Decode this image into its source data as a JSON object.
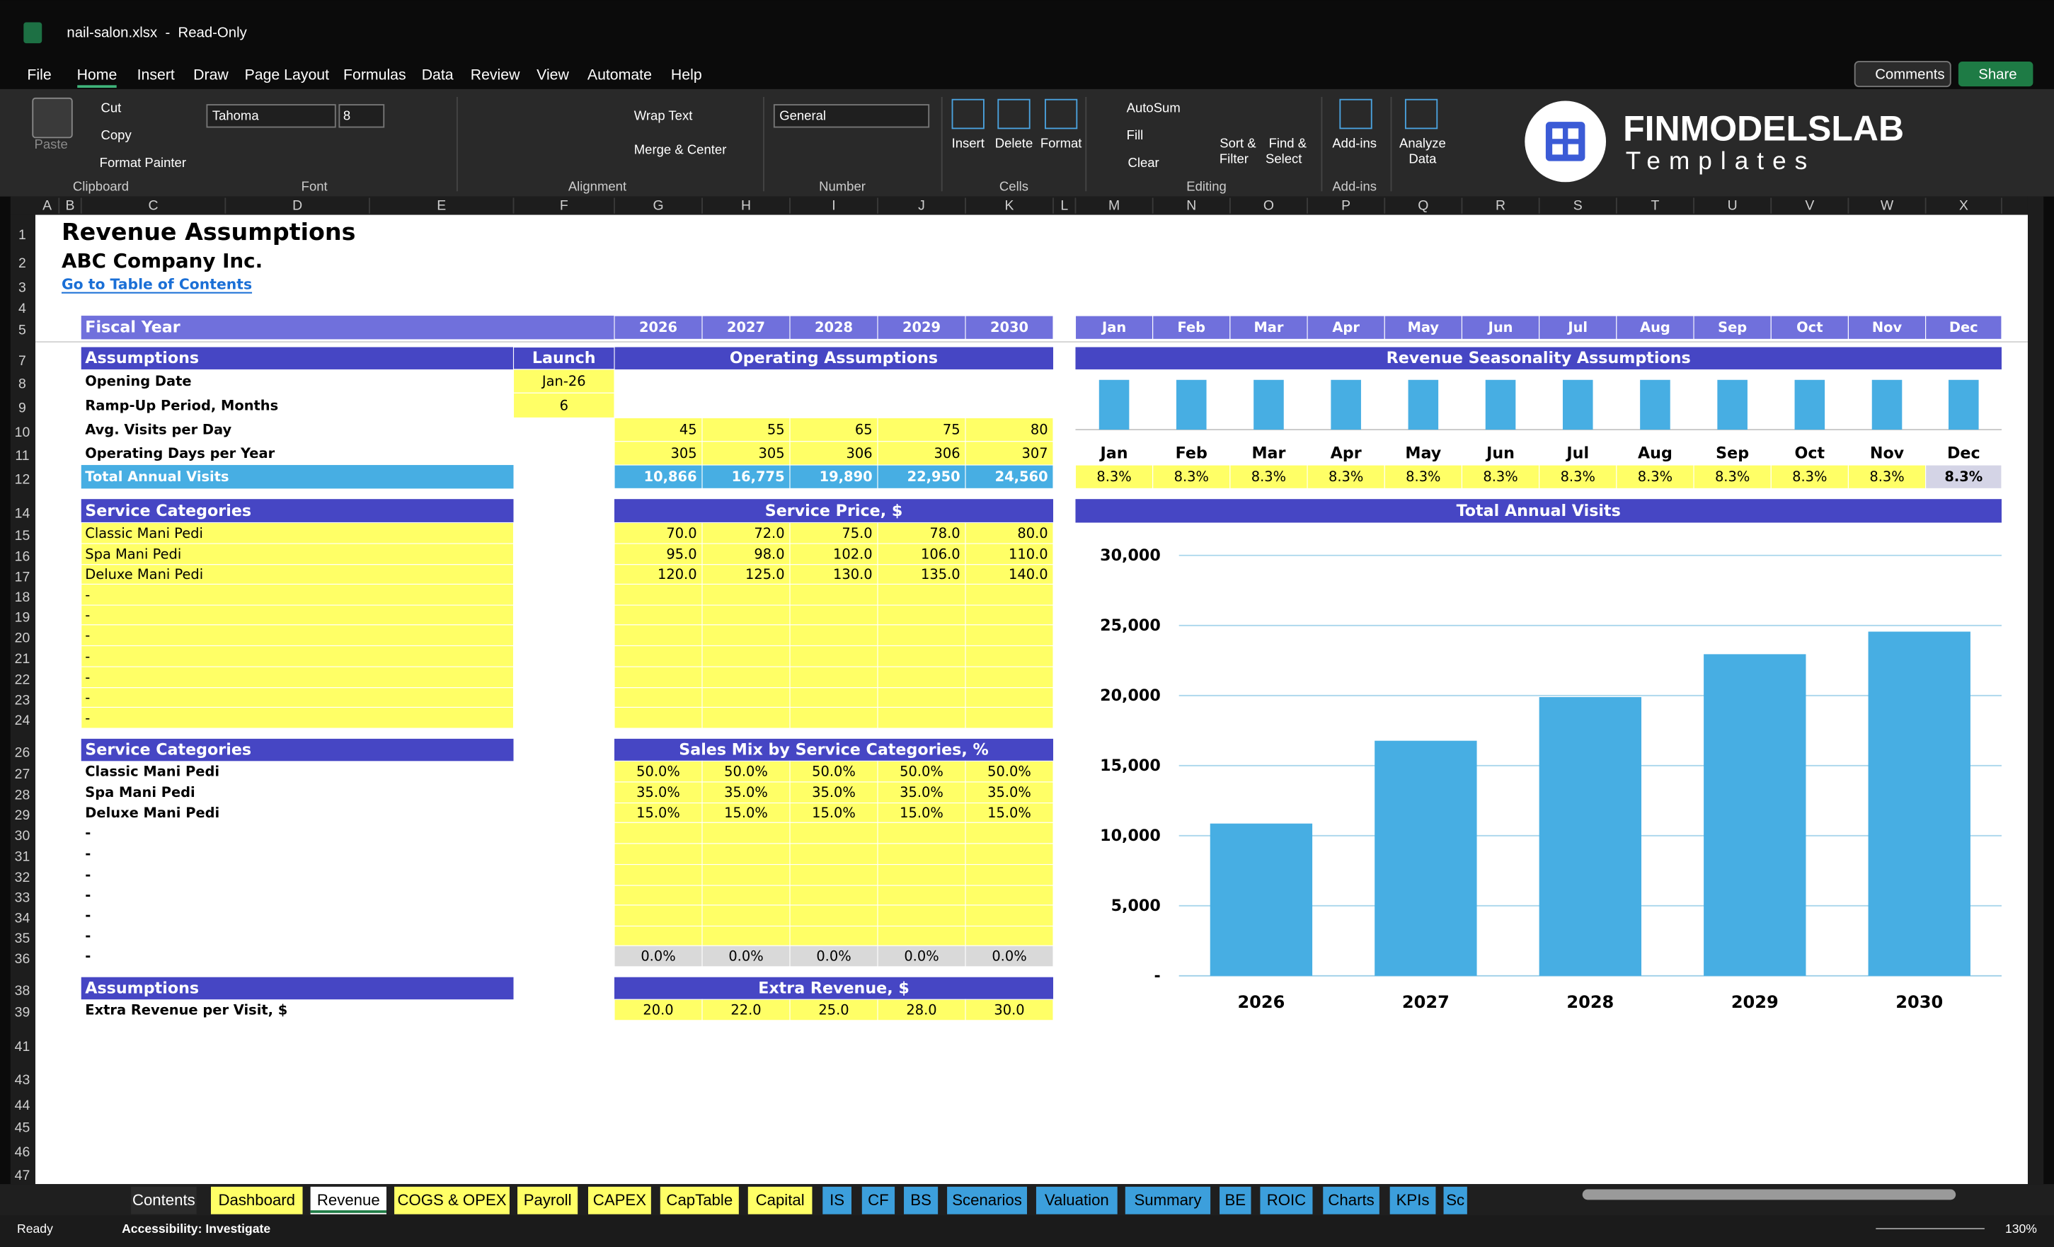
{
  "window": {
    "title": "nail-salon.xlsx  -  Read-Only"
  },
  "menu": [
    "File",
    "Home",
    "Insert",
    "Draw",
    "Page Layout",
    "Formulas",
    "Data",
    "Review",
    "View",
    "Automate",
    "Help"
  ],
  "active_menu": 1,
  "top_buttons": [
    "Comments",
    "Share"
  ],
  "ribbon": {
    "clipboard": {
      "label": "Clipboard",
      "paste": "Paste",
      "cut": "Cut",
      "copy": "Copy",
      "format_painter": "Format Painter"
    },
    "font": {
      "label": "Font",
      "name": "Tahoma",
      "size": "8"
    },
    "alignment": {
      "label": "Alignment",
      "wrap": "Wrap Text",
      "merge": "Merge & Center"
    },
    "number": {
      "label": "Number",
      "format": "General"
    },
    "cells": {
      "label": "Cells",
      "insert": "Insert",
      "delete": "Delete",
      "format": "Format"
    },
    "editing": {
      "label": "Editing",
      "autosum": "AutoSum",
      "fill": "Fill",
      "clear": "Clear",
      "sort": [
        "Sort &",
        "Filter"
      ],
      "find": [
        "Find &",
        "Select"
      ]
    },
    "addins": {
      "label": "Add-ins",
      "button": "Add-ins"
    },
    "analyze": [
      "Analyze",
      "Data"
    ],
    "logo": {
      "brand": "FINMODELSLAB",
      "tagline": "Templates"
    }
  },
  "columns": [
    "A",
    "B",
    "C",
    "D",
    "E",
    "F",
    "G",
    "H",
    "I",
    "J",
    "K",
    "L",
    "M",
    "N",
    "O",
    "P",
    "Q",
    "R",
    "S",
    "T",
    "U",
    "V",
    "W",
    "X"
  ],
  "rows": [
    "1",
    "2",
    "3",
    "4",
    "5",
    "7",
    "8",
    "9",
    "10",
    "11",
    "12",
    "14",
    "15",
    "16",
    "17",
    "18",
    "19",
    "20",
    "21",
    "22",
    "23",
    "24",
    "26",
    "27",
    "28",
    "29",
    "30",
    "31",
    "32",
    "33",
    "34",
    "35",
    "36",
    "38",
    "39",
    "41",
    "43",
    "44",
    "45",
    "46",
    "47"
  ],
  "sheet": {
    "title": "Revenue Assumptions",
    "company": "ABC Company Inc.",
    "toc_link": "Go to Table of Contents",
    "fiscal_year_label": "Fiscal Year",
    "years": [
      "2026",
      "2027",
      "2028",
      "2029",
      "2030"
    ],
    "months": [
      "Jan",
      "Feb",
      "Mar",
      "Apr",
      "May",
      "Jun",
      "Jul",
      "Aug",
      "Sep",
      "Oct",
      "Nov",
      "Dec"
    ],
    "operating": {
      "header": "Assumptions",
      "launch_header": "Launch",
      "title": "Operating Assumptions",
      "launch_rows": [
        [
          "Opening Date",
          "Jan-26"
        ],
        [
          "Ramp-Up Period, Months",
          "6"
        ]
      ],
      "rows": [
        [
          "Avg. Visits per Day",
          "45",
          "55",
          "65",
          "75",
          "80"
        ],
        [
          "Operating Days per Year",
          "305",
          "305",
          "306",
          "306",
          "307"
        ]
      ],
      "total": [
        "Total Annual Visits",
        "10,866",
        "16,775",
        "19,890",
        "22,950",
        "24,560"
      ]
    },
    "seasonality": {
      "title": "Revenue Seasonality Assumptions",
      "values": [
        8.3,
        8.3,
        8.3,
        8.3,
        8.3,
        8.3,
        8.3,
        8.3,
        8.3,
        8.3,
        8.3,
        8.3
      ],
      "value_labels": [
        "8.3%",
        "8.3%",
        "8.3%",
        "8.3%",
        "8.3%",
        "8.3%",
        "8.3%",
        "8.3%",
        "8.3%",
        "8.3%",
        "8.3%",
        "8.3%"
      ],
      "color": "#47aee3"
    },
    "price": {
      "header": "Service Categories",
      "title": "Service Price, $",
      "rows": [
        [
          "Classic Mani Pedi",
          "70.0",
          "72.0",
          "75.0",
          "78.0",
          "80.0"
        ],
        [
          "Spa Mani Pedi",
          "95.0",
          "98.0",
          "102.0",
          "106.0",
          "110.0"
        ],
        [
          "Deluxe Mani Pedi",
          "120.0",
          "125.0",
          "130.0",
          "135.0",
          "140.0"
        ],
        [
          "-"
        ],
        [
          "-"
        ],
        [
          "-"
        ],
        [
          "-"
        ],
        [
          "-"
        ],
        [
          "-"
        ],
        [
          "-"
        ]
      ]
    },
    "mix": {
      "header": "Service Categories",
      "title": "Sales Mix by Service Categories, %",
      "rows": [
        [
          "Classic Mani Pedi",
          "50.0%",
          "50.0%",
          "50.0%",
          "50.0%",
          "50.0%"
        ],
        [
          "Spa Mani Pedi",
          "35.0%",
          "35.0%",
          "35.0%",
          "35.0%",
          "35.0%"
        ],
        [
          "Deluxe Mani Pedi",
          "15.0%",
          "15.0%",
          "15.0%",
          "15.0%",
          "15.0%"
        ],
        [
          "-"
        ],
        [
          "-"
        ],
        [
          "-"
        ],
        [
          "-"
        ],
        [
          "-"
        ],
        [
          "-"
        ],
        [
          "-",
          "0.0%",
          "0.0%",
          "0.0%",
          "0.0%",
          "0.0%"
        ]
      ]
    },
    "extra": {
      "header": "Assumptions",
      "title": "Extra Revenue, $",
      "rows": [
        [
          "Extra Revenue per Visit, $",
          "20.0",
          "22.0",
          "25.0",
          "28.0",
          "30.0"
        ]
      ]
    }
  },
  "chart_data": {
    "type": "bar",
    "title": "Total Annual Visits",
    "categories": [
      "2026",
      "2027",
      "2028",
      "2029",
      "2030"
    ],
    "values": [
      10866,
      16775,
      19890,
      22950,
      24560
    ],
    "color": "#47aee3",
    "ylim": [
      0,
      30000
    ],
    "yticks": [
      {
        "value": 0,
        "label": "-"
      },
      {
        "value": 5000,
        "label": "5,000"
      },
      {
        "value": 10000,
        "label": "10,000"
      },
      {
        "value": 15000,
        "label": "15,000"
      },
      {
        "value": 20000,
        "label": "20,000"
      },
      {
        "value": 25000,
        "label": "25,000"
      },
      {
        "value": 30000,
        "label": "30,000"
      }
    ],
    "grid": true
  },
  "tabs": [
    {
      "name": "Contents",
      "color": "#2b2b2b"
    },
    {
      "name": "Dashboard",
      "color": "#ffff66"
    },
    {
      "name": "Revenue",
      "color": "#ffffff"
    },
    {
      "name": "COGS & OPEX",
      "color": "#ffff66"
    },
    {
      "name": "Payroll",
      "color": "#ffff66"
    },
    {
      "name": "CAPEX",
      "color": "#ffff66"
    },
    {
      "name": "CapTable",
      "color": "#ffff66"
    },
    {
      "name": "Capital",
      "color": "#ffff66"
    },
    {
      "name": "IS",
      "color": "#3c9fdc"
    },
    {
      "name": "CF",
      "color": "#3c9fdc"
    },
    {
      "name": "BS",
      "color": "#3c9fdc"
    },
    {
      "name": "Scenarios",
      "color": "#3c9fdc"
    },
    {
      "name": "Valuation",
      "color": "#3c9fdc"
    },
    {
      "name": "Summary",
      "color": "#3c9fdc"
    },
    {
      "name": "BE",
      "color": "#3c9fdc"
    },
    {
      "name": "ROIC",
      "color": "#3c9fdc"
    },
    {
      "name": "Charts",
      "color": "#3c9fdc"
    },
    {
      "name": "KPIs",
      "color": "#3c9fdc"
    },
    {
      "name": "Sc",
      "color": "#3c9fdc"
    }
  ],
  "active_tab": 2,
  "status": {
    "ready": "Ready",
    "accessibility": "Accessibility: Investigate",
    "zoom": "130%"
  }
}
